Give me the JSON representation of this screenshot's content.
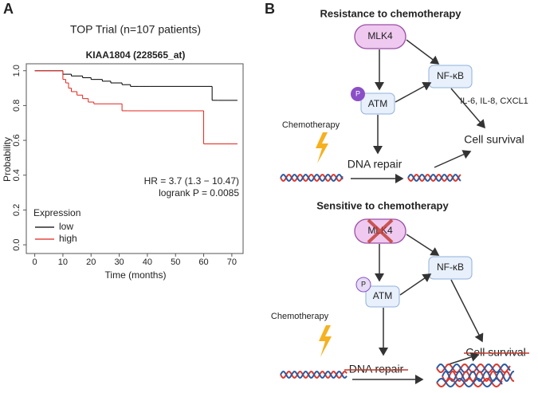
{
  "panel_labels": [
    "A",
    "B"
  ],
  "chart_data": {
    "type": "survival",
    "title": "TOP Trial (n=107 patients)",
    "subtitle": "KIAA1804 (228565_at)",
    "x_label": "Time (months)",
    "y_label": "Probability",
    "xlim": [
      -3,
      74
    ],
    "ylim": [
      -0.05,
      1.04
    ],
    "xticks": [
      0,
      10,
      20,
      30,
      40,
      50,
      60,
      70
    ],
    "yticks": [
      {
        "value": 0,
        "label": "0.0"
      },
      0.2,
      0.4,
      0.6,
      0.8,
      {
        "value": 1,
        "label": "1.0"
      }
    ],
    "legend_title": "Expression",
    "legend": "bottom-left",
    "annotations": [
      "HR = 3.7 (1.3 − 10.47)",
      "logrank P = 0.0085"
    ],
    "series": [
      {
        "name": "low",
        "color": "#000000",
        "x": [
          0,
          10,
          13,
          17,
          20,
          24,
          27,
          31,
          34,
          37,
          41,
          63,
          65,
          72
        ],
        "values": [
          1.0,
          0.98,
          0.97,
          0.96,
          0.95,
          0.94,
          0.93,
          0.92,
          0.91,
          0.91,
          0.91,
          0.83,
          0.83,
          0.83
        ]
      },
      {
        "name": "high",
        "color": "#e0241b",
        "x": [
          0,
          10,
          11,
          12,
          13,
          15,
          17,
          19,
          21,
          31,
          33,
          60,
          72
        ],
        "values": [
          1.0,
          0.95,
          0.93,
          0.9,
          0.88,
          0.86,
          0.84,
          0.82,
          0.81,
          0.77,
          0.77,
          0.58,
          0.58
        ]
      }
    ]
  },
  "diagram": {
    "resistant": {
      "title": "Resistance to chemotherapy",
      "mlk4": "MLK4",
      "nfkb": "NF-κB",
      "p": "P",
      "atm": "ATM",
      "cytokines": "IL-6, IL-8, CXCL1",
      "chemo": "Chemotherapy",
      "repair": "DNA repair",
      "survival": "Cell survival"
    },
    "sensitive": {
      "title": "Sensitive to chemotherapy",
      "mlk4": "MLK4",
      "nfkb": "NF-κB",
      "p": "P",
      "atm": "ATM",
      "chemo": "Chemotherapy",
      "repair": "DNA repair",
      "survival": "Cell survival"
    }
  }
}
